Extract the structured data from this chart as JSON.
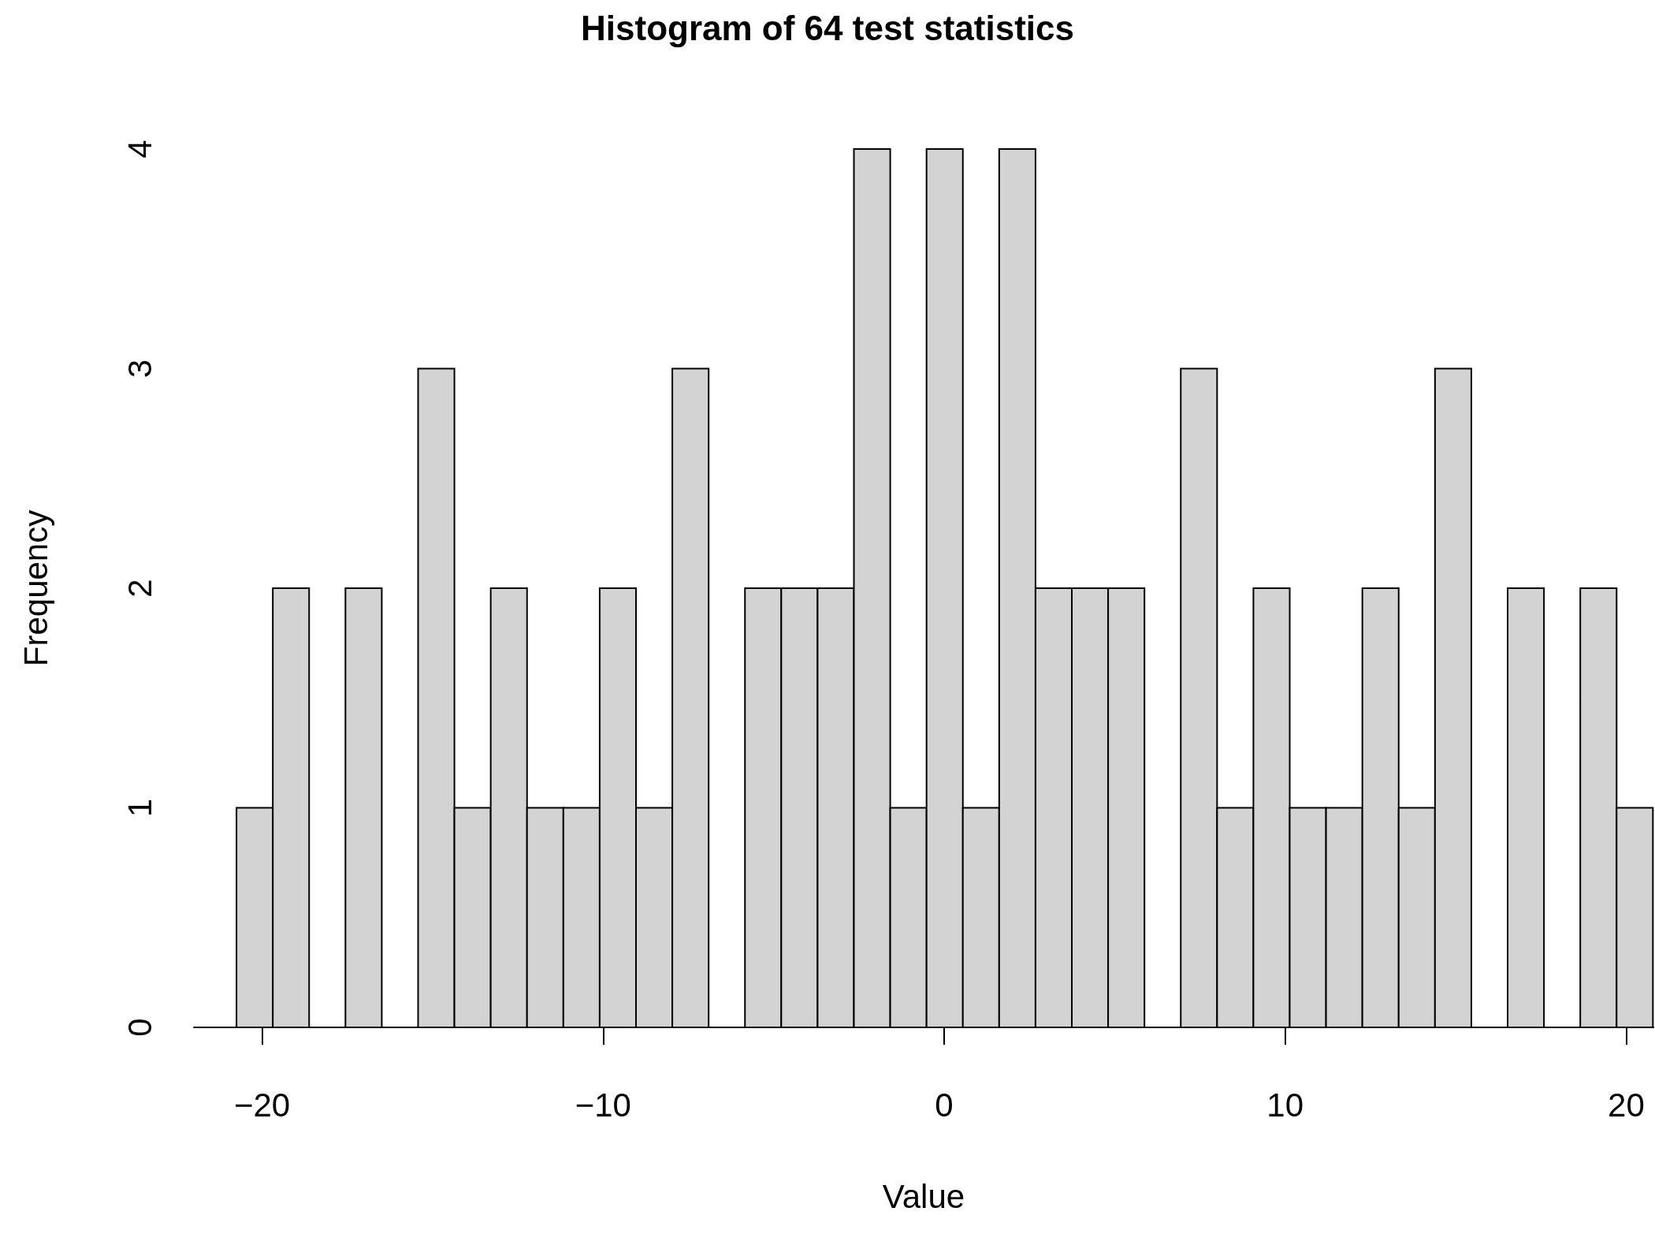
{
  "chart_data": {
    "type": "histogram",
    "title": "Histogram of 64 test statistics",
    "xlabel": "Value",
    "ylabel": "Frequency",
    "bins": [
      -20.75,
      -19.685,
      -18.62,
      -17.555,
      -16.49,
      -15.425,
      -14.36,
      -13.295,
      -12.23,
      -11.165,
      -10.1,
      -9.035,
      -7.97,
      -6.905,
      -5.84,
      -4.775,
      -3.71,
      -2.645,
      -1.58,
      -0.515,
      0.55,
      1.615,
      2.68,
      3.745,
      4.81,
      5.875,
      6.94,
      8.005,
      9.07,
      10.135,
      11.2,
      12.265,
      13.33,
      14.395,
      15.46,
      16.525,
      17.59,
      18.655,
      19.72,
      20.785
    ],
    "values": [
      1,
      2,
      0,
      2,
      0,
      3,
      1,
      2,
      1,
      1,
      2,
      1,
      3,
      0,
      2,
      2,
      2,
      4,
      1,
      4,
      1,
      4,
      2,
      2,
      2,
      0,
      3,
      1,
      2,
      1,
      1,
      2,
      1,
      3,
      0,
      2,
      0,
      2,
      1
    ],
    "color": "#d3d3d3",
    "xlim": [
      -22,
      20.8
    ],
    "xticks": [
      -20,
      -10,
      0,
      10,
      20
    ],
    "ylim": [
      0,
      4
    ],
    "yticks": [
      0,
      1,
      2,
      3,
      4
    ],
    "grid": false
  }
}
